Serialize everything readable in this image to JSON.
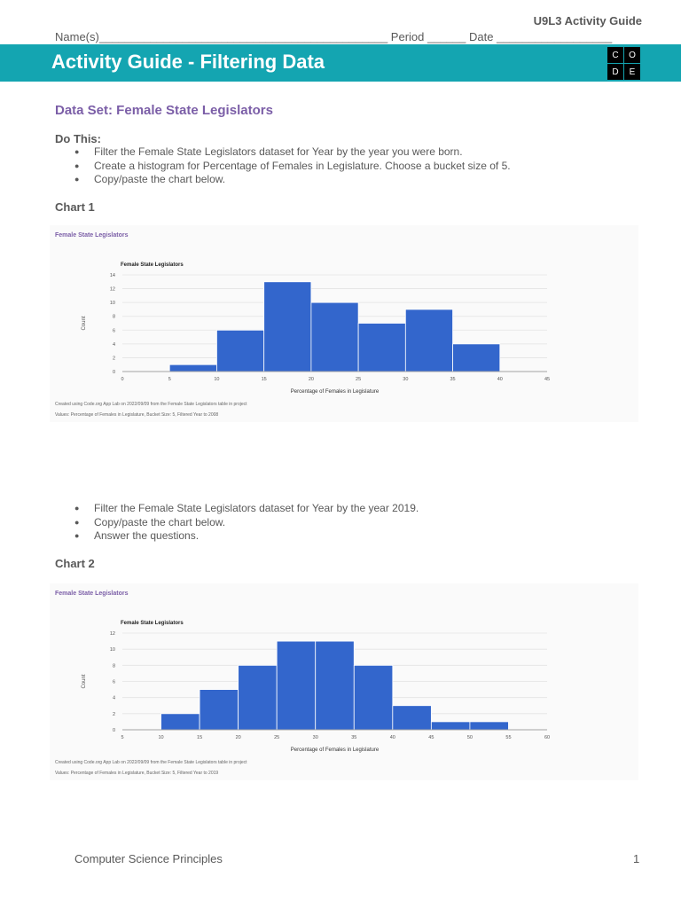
{
  "header": {
    "guide_label": "U9L3 Activity Guide",
    "name_line": "Name(s)_____________________________________________ Period ______ Date __________________",
    "title": "Activity Guide - Filtering Data",
    "logo_letters": [
      "C",
      "O",
      "D",
      "E"
    ]
  },
  "section": {
    "dataset_title": "Data Set: Female State Legislators",
    "do_this_label": "Do This:",
    "steps_1": [
      "Filter the Female State Legislators dataset for Year by the year you were born.",
      "Create a histogram for Percentage of Females in Legislature. Choose a bucket size of 5.",
      "Copy/paste the chart below."
    ],
    "steps_2": [
      "Filter the Female State Legislators dataset for Year by the year 2019.",
      "Copy/paste the chart below.",
      "Answer the questions."
    ]
  },
  "chart_data": [
    {
      "label": "Chart 1",
      "type": "bar",
      "panel_title": "Female State Legislators",
      "title": "Female State Legislators",
      "xlabel": "Percentage of Females in Legislature",
      "ylabel": "Count",
      "x_ticks": [
        0,
        5,
        10,
        15,
        20,
        25,
        30,
        35,
        40,
        45
      ],
      "y_ticks": [
        0,
        2,
        4,
        6,
        8,
        10,
        12,
        14
      ],
      "xlim": [
        0,
        45
      ],
      "ylim": [
        0,
        14
      ],
      "grid": true,
      "bins": [
        {
          "start": 5,
          "end": 10,
          "count": 1
        },
        {
          "start": 10,
          "end": 15,
          "count": 6
        },
        {
          "start": 15,
          "end": 20,
          "count": 13
        },
        {
          "start": 20,
          "end": 25,
          "count": 10
        },
        {
          "start": 25,
          "end": 30,
          "count": 7
        },
        {
          "start": 30,
          "end": 35,
          "count": 9
        },
        {
          "start": 35,
          "end": 40,
          "count": 4
        }
      ],
      "bar_color": "#3366cc",
      "caption_1": "Created using Code.org App Lab on 2022/09/09 from the Female State Legislators table in project",
      "caption_2": "Values: Percentage of Females in Legislature, Bucket Size: 5, Filtered Year to 2008"
    },
    {
      "label": "Chart 2",
      "type": "bar",
      "panel_title": "Female State Legislators",
      "title": "Female State Legislators",
      "xlabel": "Percentage of Females in Legislature",
      "ylabel": "Count",
      "x_ticks": [
        5,
        10,
        15,
        20,
        25,
        30,
        35,
        40,
        45,
        50,
        55,
        60
      ],
      "y_ticks": [
        0,
        2,
        4,
        6,
        8,
        10,
        12
      ],
      "xlim": [
        5,
        60
      ],
      "ylim": [
        0,
        12
      ],
      "grid": true,
      "bins": [
        {
          "start": 10,
          "end": 15,
          "count": 2
        },
        {
          "start": 15,
          "end": 20,
          "count": 5
        },
        {
          "start": 20,
          "end": 25,
          "count": 8
        },
        {
          "start": 25,
          "end": 30,
          "count": 11
        },
        {
          "start": 30,
          "end": 35,
          "count": 11
        },
        {
          "start": 35,
          "end": 40,
          "count": 8
        },
        {
          "start": 40,
          "end": 45,
          "count": 3
        },
        {
          "start": 45,
          "end": 50,
          "count": 1
        },
        {
          "start": 50,
          "end": 55,
          "count": 1
        }
      ],
      "bar_color": "#3366cc",
      "caption_1": "Created using Code.org App Lab on 2022/09/09 from the Female State Legislators table in project",
      "caption_2": "Values: Percentage of Females in Legislature, Bucket Size: 5, Filtered Year to 2019"
    }
  ],
  "footer": {
    "course": "Computer Science Principles",
    "page": "1"
  }
}
